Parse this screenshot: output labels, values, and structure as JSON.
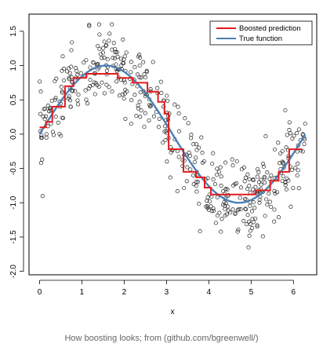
{
  "chart_data": {
    "type": "line",
    "title": "",
    "xlabel": "x",
    "ylabel": "",
    "xlim": [
      -0.25,
      6.55
    ],
    "ylim": [
      -2.05,
      1.75
    ],
    "x_ticks": [
      0,
      1,
      2,
      3,
      4,
      5,
      6
    ],
    "y_ticks": [
      -2.0,
      -1.5,
      -1.0,
      -0.5,
      0.0,
      0.5,
      1.0,
      1.5
    ],
    "legend_position": "top-right",
    "grid": false,
    "series": [
      {
        "name": "Boosted prediction",
        "color": "#e41a1c",
        "style": "step",
        "points": [
          [
            0.0,
            0.1
          ],
          [
            0.15,
            0.1
          ],
          [
            0.15,
            0.18
          ],
          [
            0.3,
            0.18
          ],
          [
            0.3,
            0.4
          ],
          [
            0.6,
            0.4
          ],
          [
            0.6,
            0.7
          ],
          [
            0.8,
            0.7
          ],
          [
            0.8,
            0.82
          ],
          [
            1.1,
            0.82
          ],
          [
            1.1,
            0.88
          ],
          [
            1.85,
            0.88
          ],
          [
            1.85,
            0.82
          ],
          [
            2.2,
            0.82
          ],
          [
            2.2,
            0.75
          ],
          [
            2.55,
            0.75
          ],
          [
            2.55,
            0.62
          ],
          [
            2.8,
            0.62
          ],
          [
            2.8,
            0.47
          ],
          [
            2.95,
            0.47
          ],
          [
            2.95,
            0.3
          ],
          [
            3.05,
            0.3
          ],
          [
            3.05,
            -0.22
          ],
          [
            3.4,
            -0.22
          ],
          [
            3.4,
            -0.55
          ],
          [
            3.7,
            -0.55
          ],
          [
            3.7,
            -0.63
          ],
          [
            3.9,
            -0.63
          ],
          [
            3.9,
            -0.78
          ],
          [
            4.05,
            -0.78
          ],
          [
            4.05,
            -0.88
          ],
          [
            5.1,
            -0.88
          ],
          [
            5.1,
            -0.82
          ],
          [
            5.45,
            -0.82
          ],
          [
            5.45,
            -0.68
          ],
          [
            5.65,
            -0.68
          ],
          [
            5.65,
            -0.55
          ],
          [
            5.9,
            -0.55
          ],
          [
            5.9,
            -0.22
          ],
          [
            6.2,
            -0.22
          ]
        ]
      },
      {
        "name": "True function",
        "color": "#4a7fb5",
        "style": "line",
        "function": "sin(x)",
        "x_range": [
          0,
          6.28
        ]
      }
    ],
    "scatter": {
      "name": "observations",
      "shape": "open-circle",
      "count": 480,
      "noise_sd": 0.28,
      "annotation": "noisy samples around sin(x)"
    }
  },
  "caption": "How boosting looks; from (github.com/bgreenwell/)"
}
